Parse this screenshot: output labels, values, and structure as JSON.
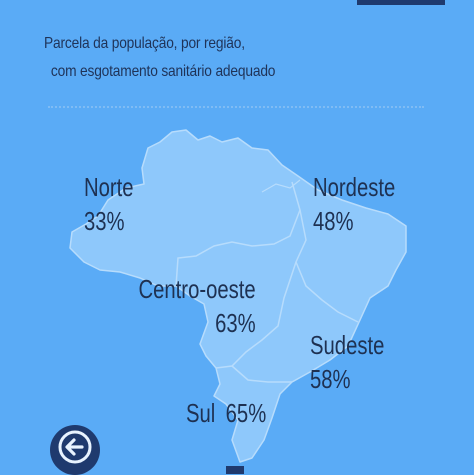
{
  "title": {
    "line1": "Parcela da população, por região,",
    "line2": "com esgotamento sanitário adequado"
  },
  "regions": [
    {
      "name": "Norte",
      "value": "33%"
    },
    {
      "name": "Nordeste",
      "value": "48%"
    },
    {
      "name": "Centro-oeste",
      "value": "63%"
    },
    {
      "name": "Sudeste",
      "value": "58%"
    },
    {
      "name": "Sul",
      "value": "65%"
    }
  ],
  "icons": {
    "back": "arrow-left-icon"
  },
  "colors": {
    "background": "#5aabf6",
    "map_fill": "#8ec8fb",
    "map_border": "#b7dcfc",
    "text": "#1e3152",
    "button": "#1f3a6e"
  }
}
